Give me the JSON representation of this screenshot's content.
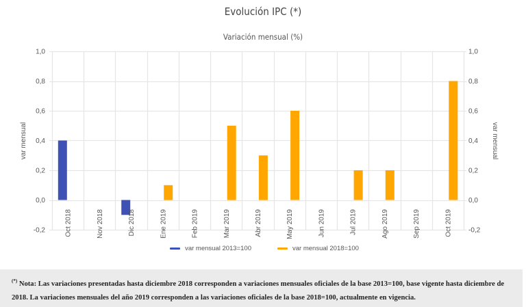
{
  "chart_data": {
    "type": "bar",
    "title": "Evolución IPC (*)",
    "subtitle": "Variación mensual (%)",
    "categories": [
      "Oct 2018",
      "Nov 2018",
      "Dic 2018",
      "Ene 2019",
      "Feb 2019",
      "Mar 2019",
      "Abr 2019",
      "May 2019",
      "Jun 2019",
      "Jul 2019",
      "Ago 2019",
      "Sep 2019",
      "Oct 2019"
    ],
    "series": [
      {
        "name": "var mensual 2013=100",
        "color": "#3f51b5",
        "values": [
          0.4,
          0.0,
          -0.1,
          null,
          null,
          null,
          null,
          null,
          null,
          null,
          null,
          null,
          null
        ]
      },
      {
        "name": "var mensual 2018=100",
        "color": "#ffa600",
        "values": [
          null,
          null,
          null,
          0.1,
          0.0,
          0.5,
          0.3,
          0.6,
          0.0,
          0.2,
          0.2,
          0.0,
          0.8
        ]
      }
    ],
    "ylabel_left": "var mensual",
    "ylabel_right": "var mensual",
    "xlabel": "",
    "ylim": [
      -0.2,
      1.0
    ],
    "yticks": [
      "-0,2",
      "0,0",
      "0,2",
      "0,4",
      "0,6",
      "0,8",
      "1,0"
    ],
    "ytick_values": [
      -0.2,
      0.0,
      0.2,
      0.4,
      0.6,
      0.8,
      1.0
    ],
    "grid": true,
    "legend_position": "bottom"
  },
  "note": {
    "marker": "(*)",
    "text": "Nota: Las variaciones presentadas hasta diciembre 2018 corresponden a variaciones mensuales oficiales de la base 2013=100, base vigente hasta diciembre de 2018. La variaciones mensuales del año 2019 corresponden a las variaciones oficiales de la base 2018=100, actualmente en vigencia."
  }
}
